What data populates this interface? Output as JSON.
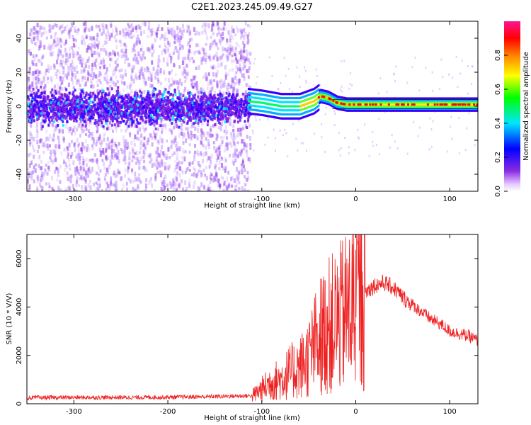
{
  "title": "C2E1.2023.245.09.49.G27",
  "chart_data": [
    {
      "type": "heatmap",
      "name": "spectrogram",
      "xlabel": "Height of straight line (km)",
      "ylabel": "Frequency (Hz)",
      "xlim": [
        -350,
        130
      ],
      "ylim": [
        -50,
        50
      ],
      "xticks": [
        -300,
        -200,
        -100,
        0,
        100
      ],
      "yticks": [
        -40,
        -20,
        0,
        20,
        40
      ],
      "grid": false,
      "colorbar": {
        "label": "Normalized spectral amplitude",
        "range": [
          0,
          1
        ],
        "ticks": [
          "0.0",
          "0.2",
          "0.4",
          "0.6",
          "0.8"
        ],
        "colors": [
          "#ffffff",
          "#8a2be2",
          "#0000ff",
          "#00e5ff",
          "#00ff00",
          "#ffff00",
          "#ff0000",
          "#ff1493"
        ]
      },
      "ridge": {
        "x": [
          -115,
          -100,
          -80,
          -60,
          -45,
          -38,
          -30,
          -20,
          -10,
          0,
          20,
          50,
          80,
          110,
          130
        ],
        "y": [
          3,
          2,
          0,
          0,
          3,
          6,
          5,
          2,
          1,
          1,
          1,
          1,
          1,
          1,
          1
        ]
      }
    },
    {
      "type": "line",
      "name": "snr",
      "xlabel": "Height of straight line (km)",
      "ylabel": "SNR (10 * V/V)",
      "xlim": [
        -350,
        130
      ],
      "ylim": [
        0,
        7000
      ],
      "xticks": [
        -300,
        -200,
        -100,
        0,
        100
      ],
      "yticks": [
        0,
        2000,
        4000,
        6000
      ],
      "grid": false,
      "color": "#ee2222",
      "series": [
        {
          "x": [
            -350,
            -300,
            -250,
            -200,
            -150,
            -110,
            -100,
            -90,
            -80,
            -70,
            -60,
            -50,
            -40,
            -30,
            -20,
            -10,
            0,
            10,
            20,
            30,
            40,
            50,
            60,
            70,
            80,
            90,
            100,
            110,
            120,
            130
          ],
          "values": [
            250,
            260,
            260,
            270,
            300,
            330,
            600,
            900,
            1000,
            1300,
            1500,
            1900,
            2700,
            3200,
            3400,
            3800,
            4200,
            4600,
            4900,
            5000,
            4800,
            4400,
            4100,
            3800,
            3500,
            3300,
            3000,
            2900,
            2800,
            2600
          ]
        }
      ]
    }
  ]
}
